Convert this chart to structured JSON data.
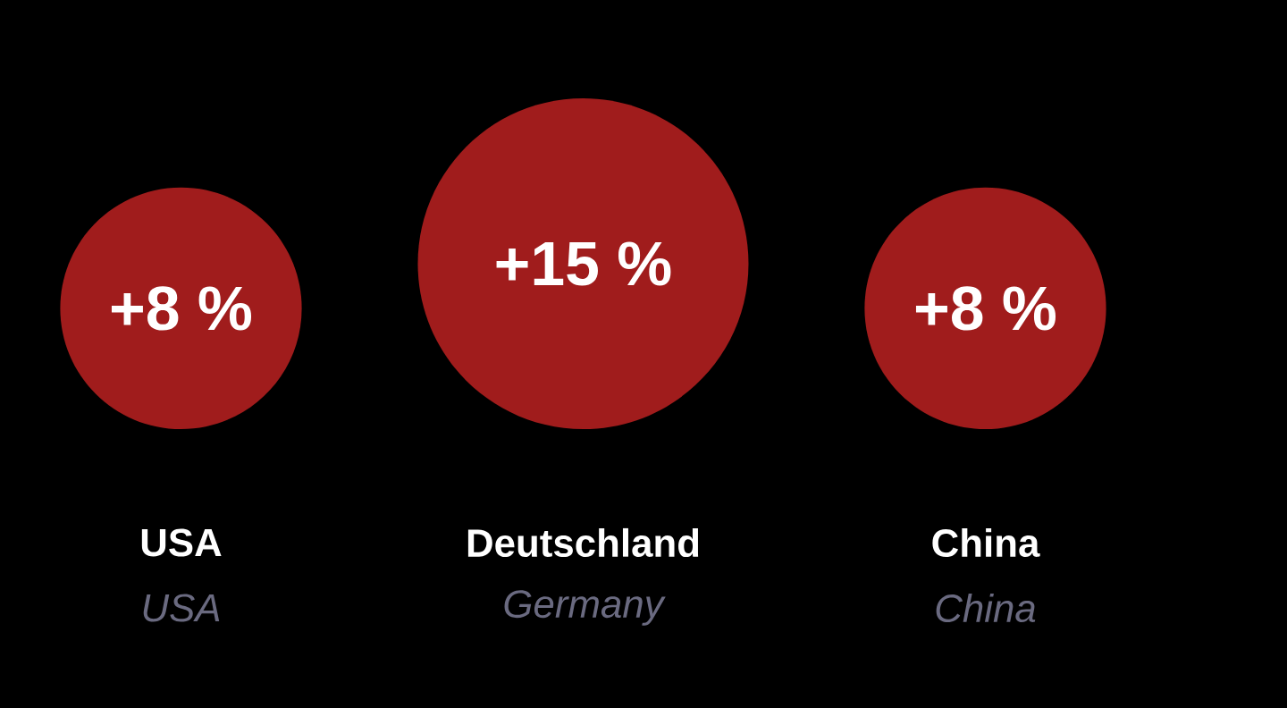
{
  "chart_data": {
    "type": "other",
    "categories": [
      "USA",
      "Deutschland",
      "China"
    ],
    "values": [
      8,
      15,
      8
    ],
    "value_labels": [
      "+8 %",
      "+15 %",
      "+8 %"
    ],
    "color": "#a01c1c",
    "annotations": [
      "USA",
      "Germany",
      "China"
    ]
  }
}
